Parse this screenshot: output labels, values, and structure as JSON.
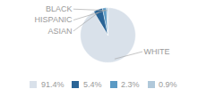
{
  "chart_data": {
    "type": "pie",
    "categories": [
      "WHITE",
      "ASIAN",
      "HISPANIC",
      "BLACK"
    ],
    "values": [
      91.4,
      5.4,
      2.3,
      0.9
    ],
    "value_labels": [
      "91.4%",
      "5.4%",
      "2.3%",
      "0.9%"
    ],
    "colors": [
      "#d9e1ea",
      "#2a6496",
      "#5b9ac4",
      "#b0c8da"
    ],
    "legend": "bottom"
  }
}
